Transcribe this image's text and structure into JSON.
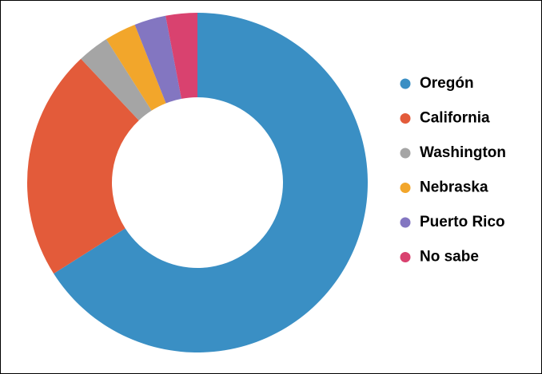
{
  "chart_data": {
    "type": "donut",
    "categories": [
      "Oregón",
      "California",
      "Washington",
      "Nebraska",
      "Puerto Rico",
      "No sabe"
    ],
    "values": [
      66,
      22,
      3,
      3,
      3,
      3
    ],
    "colors": [
      "#3a8fc4",
      "#e35b3a",
      "#a5a5a5",
      "#f2a62b",
      "#8376c1",
      "#d9426f"
    ],
    "legend": "right"
  }
}
